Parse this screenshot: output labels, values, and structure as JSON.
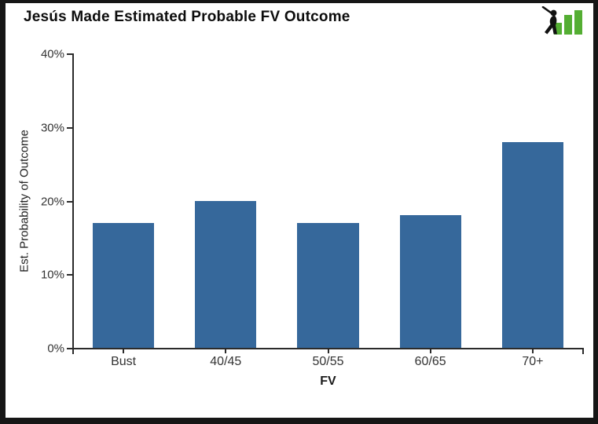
{
  "header": {
    "title": "Jesús Made Estimated Probable FV Outcome"
  },
  "logo": {
    "name": "fangraphs-logo",
    "bar_color": "#54ae33",
    "batter_color": "#111111"
  },
  "chart_data": {
    "type": "bar",
    "title": "Jesús Made Estimated Probable FV Outcome",
    "categories": [
      "Bust",
      "40/45",
      "50/55",
      "60/65",
      "70+"
    ],
    "values": [
      17,
      20,
      17,
      18,
      28
    ],
    "unit": "%",
    "xlabel": "FV",
    "ylabel": "Est. Probability of Outcome",
    "ylim": [
      0,
      40
    ],
    "yticks": [
      0,
      10,
      20,
      30,
      40
    ],
    "ytick_labels": [
      "0%",
      "10%",
      "20%",
      "30%",
      "40%"
    ],
    "bar_color": "#36689b",
    "axis_color": "#2b2b2b",
    "tick_label_color": "#333333",
    "grid": false,
    "legend": false
  }
}
